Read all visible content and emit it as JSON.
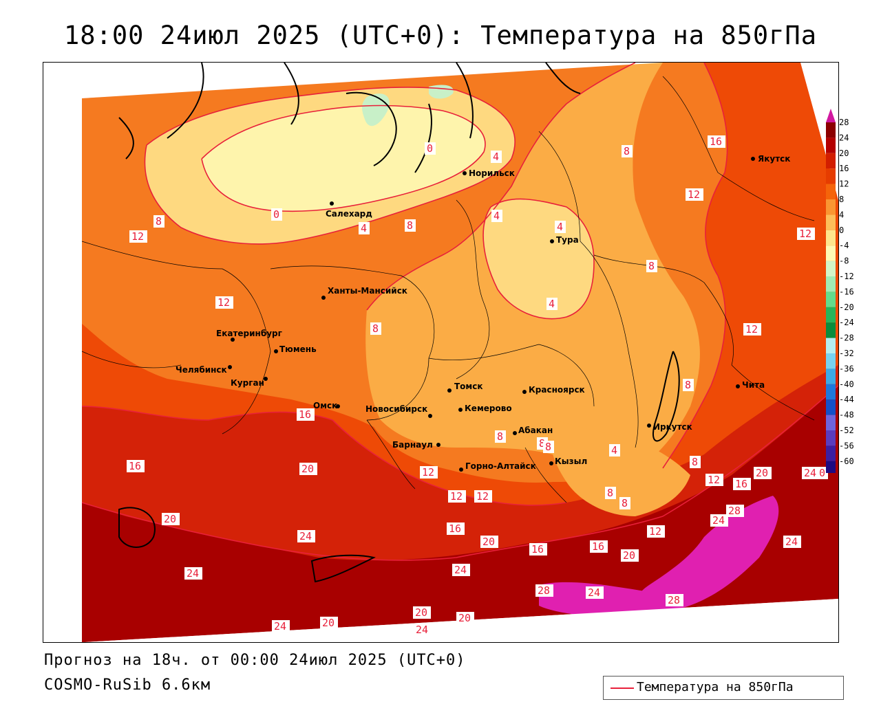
{
  "title": "18:00 24июл 2025 (UTC+0): Температура на 850гПа",
  "footer": {
    "forecast": "Прогноз на 18ч. от 00:00 24июл 2025 (UTC+0)",
    "model": "COSMO-RuSib 6.6км"
  },
  "legend": {
    "label": "Температура на 850гПа",
    "line_color": "#e8203a"
  },
  "colorbar": {
    "ticks": [
      "28",
      "24",
      "20",
      "16",
      "12",
      "8",
      "4",
      "0",
      "-4",
      "-8",
      "-12",
      "-16",
      "-20",
      "-24",
      "-28",
      "-32",
      "-36",
      "-40",
      "-44",
      "-48",
      "-52",
      "-56",
      "-60"
    ],
    "colors": [
      "#8c0000",
      "#b40000",
      "#d21e00",
      "#e63c00",
      "#f5640a",
      "#fa9632",
      "#fdbe5a",
      "#fee68c",
      "#fefab4",
      "#d2f5c8",
      "#a0ebb4",
      "#64dc8c",
      "#28b45a",
      "#0a8c3c",
      "#b4eef0",
      "#78d2f0",
      "#3caae6",
      "#1e78dc",
      "#1450c8",
      "#6e64dc",
      "#5a3cbe",
      "#3c1ea0",
      "#1e0a82"
    ],
    "top_color": "#d218a0"
  },
  "cities": [
    {
      "name": "Якутск"
    },
    {
      "name": "Норильск"
    },
    {
      "name": "Салехард"
    },
    {
      "name": "Тура"
    },
    {
      "name": "Ханты-Мансийск"
    },
    {
      "name": "Екатеринбург"
    },
    {
      "name": "Тюмень"
    },
    {
      "name": "Челябинск"
    },
    {
      "name": "Курган"
    },
    {
      "name": "Омск"
    },
    {
      "name": "Новосибирск"
    },
    {
      "name": "Томск"
    },
    {
      "name": "Кемерово"
    },
    {
      "name": "Красноярск"
    },
    {
      "name": "Барнаул"
    },
    {
      "name": "Горно-Алтайск"
    },
    {
      "name": "Абакан"
    },
    {
      "name": "Кызыл"
    },
    {
      "name": "Иркутск"
    },
    {
      "name": "Чита"
    }
  ],
  "contour_labels": [
    "16",
    "12",
    "12",
    "8",
    "4",
    "4",
    "0",
    "4",
    "8",
    "12",
    "12",
    "8",
    "8",
    "4",
    "4",
    "0",
    "8",
    "8",
    "12",
    "8",
    "4",
    "8",
    "8",
    "16",
    "20",
    "20",
    "24",
    "24",
    "24",
    "12",
    "12",
    "12",
    "16",
    "20",
    "16",
    "16",
    "20",
    "12",
    "24",
    "28",
    "24",
    "28",
    "28",
    "24",
    "20",
    "20",
    "24",
    "20",
    "8",
    "8",
    "16",
    "24",
    "12",
    "8",
    "20",
    "24",
    "0",
    "16"
  ],
  "region_colors": {
    "deep_red": "#a80000",
    "red": "#d42208",
    "red_orange": "#ee4a06",
    "orange": "#f57a20",
    "light_orange": "#fbac45",
    "pale_yellow": "#fed980",
    "cream": "#fef4ac",
    "mint": "#c8f0c8",
    "magenta": "#e020b0"
  }
}
